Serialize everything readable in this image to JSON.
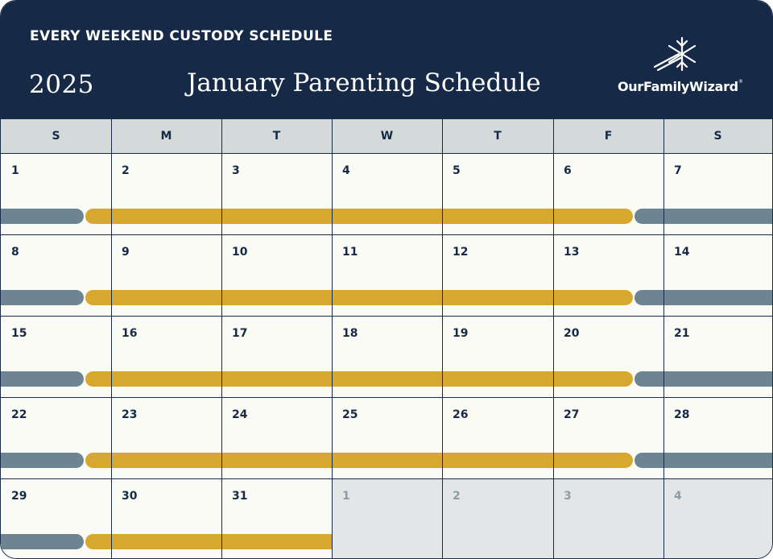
{
  "header": {
    "subtitle": "EVERY WEEKEND CUSTODY SCHEDULE",
    "year": "2025",
    "title": "January Parenting Schedule",
    "logo_text": "OurFamilyWizard",
    "logo_tm": "®"
  },
  "colors": {
    "header_bg": "#162a47",
    "weekend_parent": "#6d8592",
    "weekday_parent": "#d8a72e",
    "next_month_cell": "#e2e6e6"
  },
  "calendar": {
    "weekdays": [
      "S",
      "M",
      "T",
      "W",
      "T",
      "F",
      "S"
    ],
    "weeks": [
      [
        "1",
        "2",
        "3",
        "4",
        "5",
        "6",
        "7"
      ],
      [
        "8",
        "9",
        "10",
        "11",
        "12",
        "13",
        "14"
      ],
      [
        "15",
        "16",
        "17",
        "18",
        "19",
        "20",
        "21"
      ],
      [
        "22",
        "23",
        "24",
        "25",
        "26",
        "27",
        "28"
      ],
      [
        "29",
        "30",
        "31",
        "1",
        "2",
        "3",
        "4"
      ]
    ],
    "next_month_cells_in_last_week": 4
  }
}
